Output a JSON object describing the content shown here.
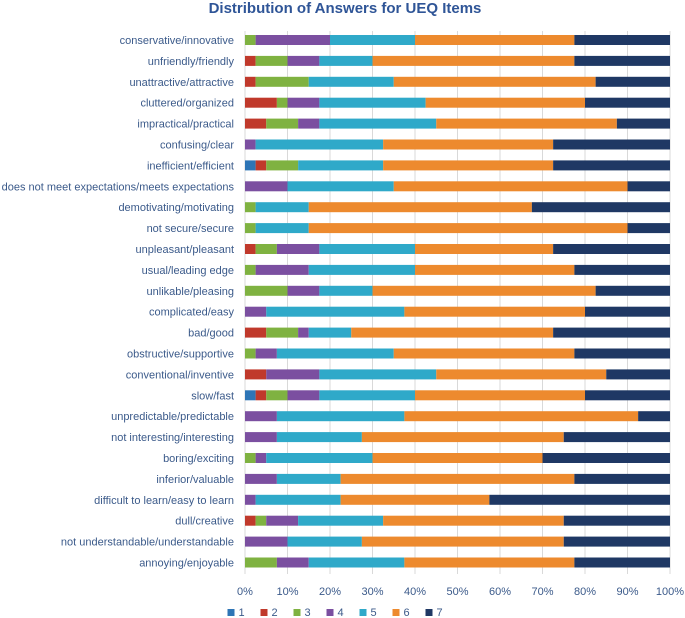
{
  "chart_data": {
    "type": "bar",
    "orientation": "horizontal",
    "stacked": true,
    "percent": true,
    "title": "Distribution  of Answers for UEQ Items",
    "xlabel": "",
    "ylabel": "",
    "xlim": [
      0,
      100
    ],
    "x_ticks": [
      "0%",
      "10%",
      "20%",
      "30%",
      "40%",
      "50%",
      "60%",
      "70%",
      "80%",
      "90%",
      "100%"
    ],
    "grid": true,
    "legend_position": "bottom",
    "categories": [
      "conservative/innovative",
      "unfriendly/friendly",
      "unattractive/attractive",
      "cluttered/organized",
      "impractical/practical",
      "confusing/clear",
      "inefficient/efficient",
      "does not meet expectations/meets expectations",
      "demotivating/motivating",
      "not secure/secure",
      "unpleasant/pleasant",
      "usual/leading edge",
      "unlikable/pleasing",
      "complicated/easy",
      "bad/good",
      "obstructive/supportive",
      "conventional/inventive",
      "slow/fast",
      "unpredictable/predictable",
      "not interesting/interesting",
      "boring/exciting",
      "inferior/valuable",
      "difficult to learn/easy to learn",
      "dull/creative",
      "not understandable/understandable",
      "annoying/enjoyable"
    ],
    "series": [
      {
        "name": "1",
        "color": "#2e75b6",
        "values": [
          0,
          0,
          0,
          0,
          0,
          0,
          2.5,
          0,
          0,
          0,
          0,
          0,
          0,
          0,
          0,
          0,
          0,
          2.5,
          0,
          0,
          0,
          0,
          0,
          0,
          0,
          0
        ]
      },
      {
        "name": "2",
        "color": "#c0392b",
        "values": [
          0,
          2.5,
          2.5,
          7.5,
          5,
          0,
          2.5,
          0,
          0,
          0,
          2.5,
          0,
          0,
          0,
          5,
          0,
          5,
          2.5,
          0,
          0,
          0,
          0,
          0,
          2.5,
          0,
          0
        ]
      },
      {
        "name": "3",
        "color": "#7fb241",
        "values": [
          2.5,
          7.5,
          12.5,
          2.5,
          7.5,
          0,
          7.5,
          0,
          2.5,
          2.5,
          5,
          2.5,
          10,
          0,
          7.5,
          2.5,
          0,
          5,
          0,
          0,
          2.5,
          0,
          0,
          2.5,
          0,
          7.5
        ]
      },
      {
        "name": "4",
        "color": "#7b4fa0",
        "values": [
          17.5,
          7.5,
          0,
          7.5,
          5,
          2.5,
          0,
          10,
          0,
          0,
          10,
          12.5,
          7.5,
          5,
          2.5,
          5,
          12.5,
          7.5,
          7.5,
          7.5,
          2.5,
          7.5,
          2.5,
          7.5,
          10,
          7.5
        ]
      },
      {
        "name": "5",
        "color": "#2fa9c9",
        "values": [
          20,
          12.5,
          20,
          25,
          27.5,
          30,
          20,
          25,
          12.5,
          12.5,
          22.5,
          25,
          12.5,
          32.5,
          10,
          27.5,
          27.5,
          22.5,
          30,
          20,
          25,
          15,
          20,
          20,
          17.5,
          22.5
        ]
      },
      {
        "name": "6",
        "color": "#ed8a2e",
        "values": [
          37.5,
          47.5,
          47.5,
          37.5,
          42.5,
          40,
          40,
          55,
          52.5,
          75,
          32.5,
          37.5,
          52.5,
          42.5,
          47.5,
          42.5,
          40,
          40,
          55,
          47.5,
          40,
          55,
          35,
          42.5,
          47.5,
          40
        ]
      },
      {
        "name": "7",
        "color": "#1f3864",
        "values": [
          22.5,
          22.5,
          17.5,
          20,
          12.5,
          27.5,
          27.5,
          10,
          32.5,
          10,
          27.5,
          22.5,
          17.5,
          20,
          27.5,
          22.5,
          15,
          20,
          7.5,
          25,
          30,
          22.5,
          42.5,
          25,
          25,
          22.5
        ]
      }
    ]
  }
}
